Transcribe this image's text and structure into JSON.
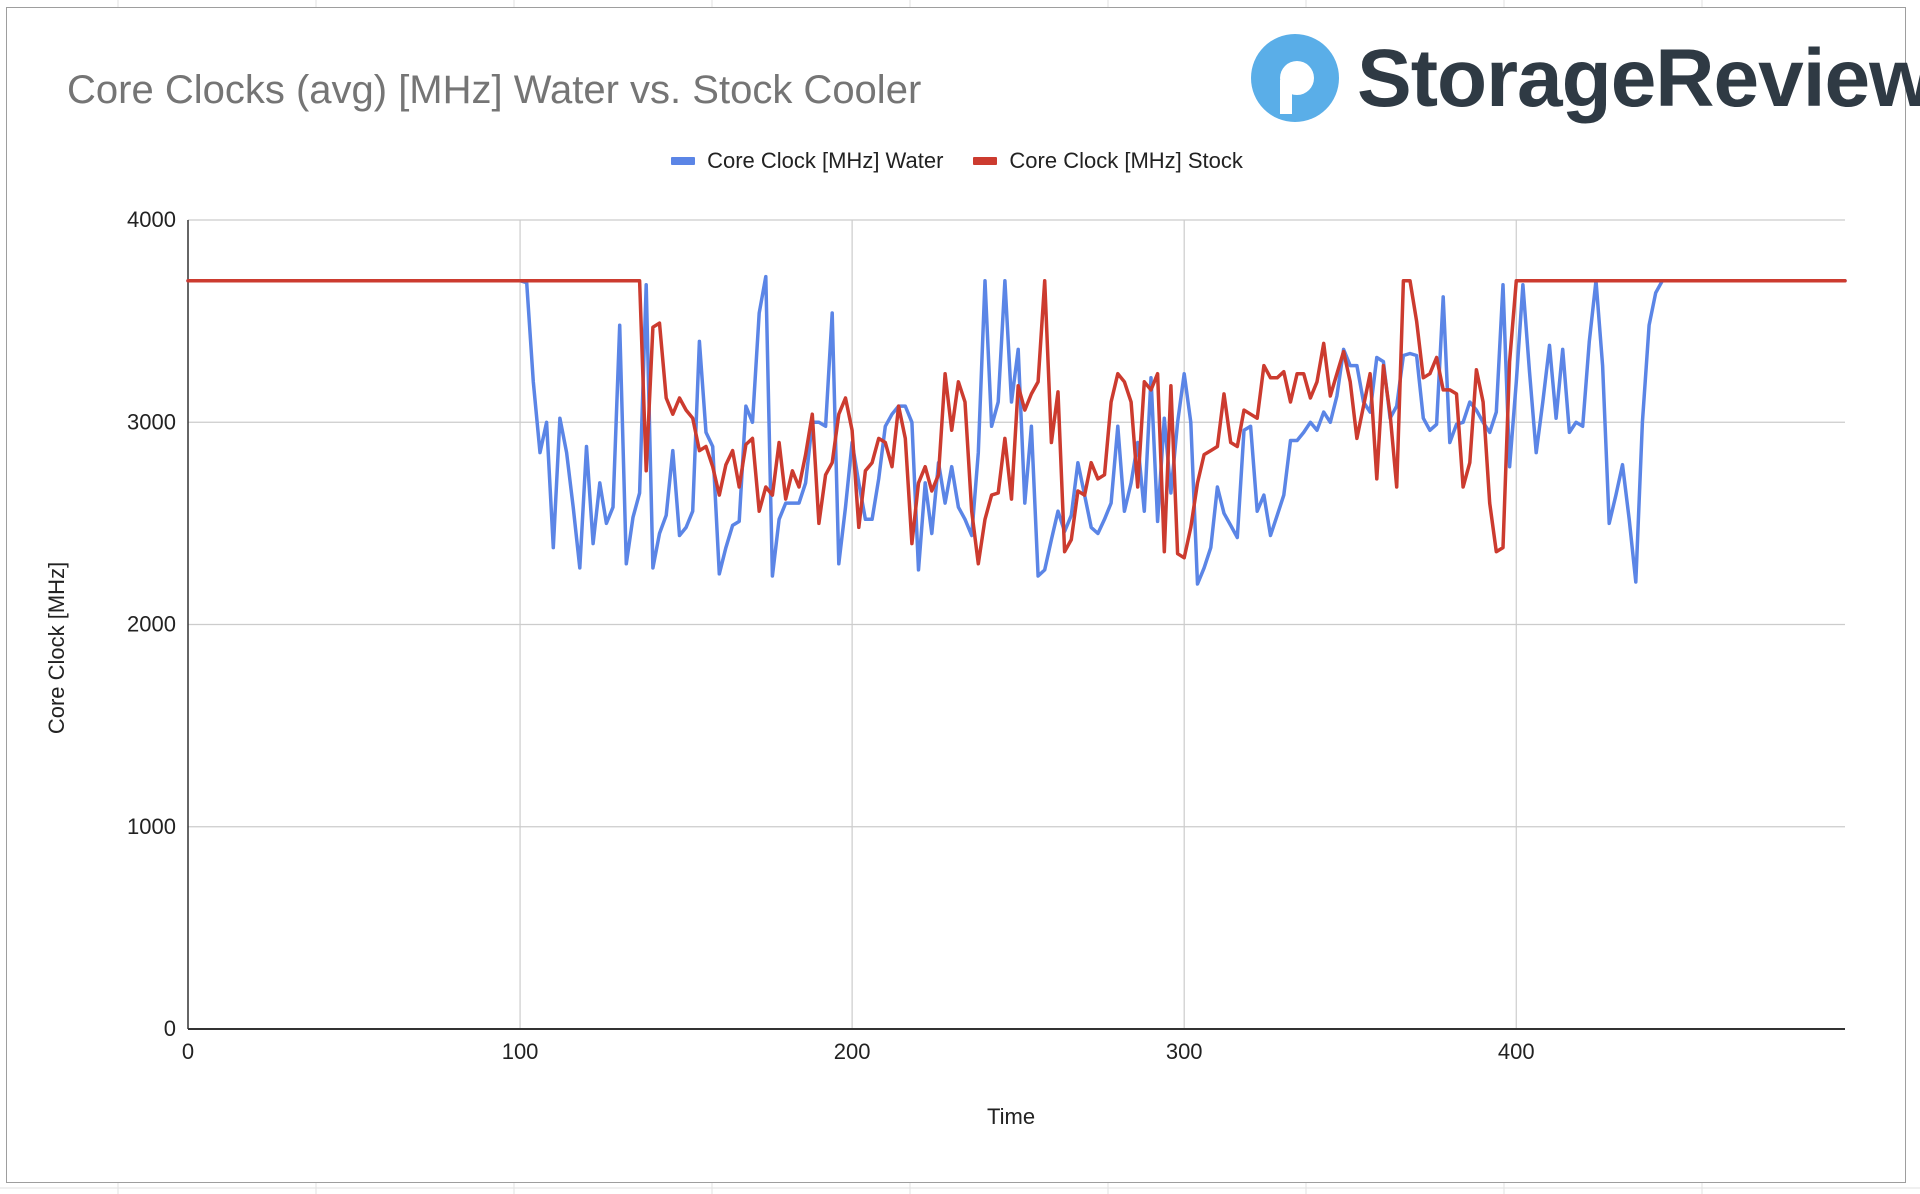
{
  "chart_title": "Core Clocks (avg) [MHz] Water vs. Stock Cooler",
  "logo_text": "StorageReview",
  "colors": {
    "water": "#5b85e6",
    "stock": "#cc3b2f",
    "grid": "#cccccc",
    "axis": "#333333",
    "logo_blue": "#5aaee8"
  },
  "icon": "storagereview-logo-icon",
  "chart_data": {
    "type": "line",
    "title": "Core Clocks (avg) [MHz] Water vs. Stock Cooler",
    "xlabel": "Time",
    "ylabel": "Core Clock [MHz]",
    "xlim": [
      0,
      499
    ],
    "ylim": [
      0,
      4000
    ],
    "xticks": [
      0,
      100,
      200,
      300,
      400
    ],
    "yticks": [
      0,
      1000,
      2000,
      3000,
      4000
    ],
    "grid": true,
    "legend_position": "top-center",
    "series": [
      {
        "name": "Core Clock [MHz] Water",
        "color": "#5b85e6",
        "points": [
          [
            0,
            3700
          ],
          [
            100,
            3700
          ],
          [
            102,
            3690
          ],
          [
            104,
            3200
          ],
          [
            106,
            2850
          ],
          [
            108,
            3000
          ],
          [
            110,
            2380
          ],
          [
            112,
            3020
          ],
          [
            114,
            2850
          ],
          [
            116,
            2580
          ],
          [
            118,
            2280
          ],
          [
            120,
            2880
          ],
          [
            122,
            2400
          ],
          [
            124,
            2700
          ],
          [
            126,
            2500
          ],
          [
            128,
            2580
          ],
          [
            130,
            3480
          ],
          [
            132,
            2300
          ],
          [
            134,
            2530
          ],
          [
            136,
            2650
          ],
          [
            138,
            3680
          ],
          [
            140,
            2280
          ],
          [
            142,
            2450
          ],
          [
            144,
            2540
          ],
          [
            146,
            2860
          ],
          [
            148,
            2440
          ],
          [
            150,
            2480
          ],
          [
            152,
            2560
          ],
          [
            154,
            3400
          ],
          [
            156,
            2950
          ],
          [
            158,
            2880
          ],
          [
            160,
            2250
          ],
          [
            162,
            2380
          ],
          [
            164,
            2490
          ],
          [
            166,
            2510
          ],
          [
            168,
            3080
          ],
          [
            170,
            3000
          ],
          [
            172,
            3540
          ],
          [
            174,
            3720
          ],
          [
            176,
            2240
          ],
          [
            178,
            2520
          ],
          [
            180,
            2600
          ],
          [
            182,
            2600
          ],
          [
            184,
            2600
          ],
          [
            186,
            2700
          ],
          [
            188,
            3000
          ],
          [
            190,
            3000
          ],
          [
            192,
            2980
          ],
          [
            194,
            3540
          ],
          [
            196,
            2300
          ],
          [
            198,
            2580
          ],
          [
            200,
            2900
          ],
          [
            202,
            2700
          ],
          [
            204,
            2520
          ],
          [
            206,
            2520
          ],
          [
            208,
            2720
          ],
          [
            210,
            2980
          ],
          [
            212,
            3040
          ],
          [
            214,
            3080
          ],
          [
            216,
            3080
          ],
          [
            218,
            3000
          ],
          [
            220,
            2270
          ],
          [
            222,
            2700
          ],
          [
            224,
            2450
          ],
          [
            226,
            2800
          ],
          [
            228,
            2600
          ],
          [
            230,
            2780
          ],
          [
            232,
            2580
          ],
          [
            234,
            2520
          ],
          [
            236,
            2440
          ],
          [
            238,
            2850
          ],
          [
            240,
            3700
          ],
          [
            242,
            2980
          ],
          [
            244,
            3100
          ],
          [
            246,
            3700
          ],
          [
            248,
            3100
          ],
          [
            250,
            3360
          ],
          [
            252,
            2600
          ],
          [
            254,
            2980
          ],
          [
            256,
            2240
          ],
          [
            258,
            2270
          ],
          [
            260,
            2420
          ],
          [
            262,
            2560
          ],
          [
            264,
            2460
          ],
          [
            266,
            2540
          ],
          [
            268,
            2800
          ],
          [
            270,
            2640
          ],
          [
            272,
            2480
          ],
          [
            274,
            2450
          ],
          [
            276,
            2520
          ],
          [
            278,
            2600
          ],
          [
            280,
            2980
          ],
          [
            282,
            2560
          ],
          [
            284,
            2700
          ],
          [
            286,
            2900
          ],
          [
            288,
            2560
          ],
          [
            290,
            3220
          ],
          [
            292,
            2510
          ],
          [
            294,
            3020
          ],
          [
            296,
            2650
          ],
          [
            298,
            3000
          ],
          [
            300,
            3240
          ],
          [
            302,
            3000
          ],
          [
            304,
            2200
          ],
          [
            306,
            2280
          ],
          [
            308,
            2380
          ],
          [
            310,
            2680
          ],
          [
            312,
            2550
          ],
          [
            314,
            2490
          ],
          [
            316,
            2430
          ],
          [
            318,
            2960
          ],
          [
            320,
            2980
          ],
          [
            322,
            2560
          ],
          [
            324,
            2640
          ],
          [
            326,
            2440
          ],
          [
            328,
            2540
          ],
          [
            330,
            2640
          ],
          [
            332,
            2910
          ],
          [
            334,
            2910
          ],
          [
            336,
            2950
          ],
          [
            338,
            3000
          ],
          [
            340,
            2960
          ],
          [
            342,
            3050
          ],
          [
            344,
            3000
          ],
          [
            346,
            3130
          ],
          [
            348,
            3360
          ],
          [
            350,
            3280
          ],
          [
            352,
            3280
          ],
          [
            354,
            3100
          ],
          [
            356,
            3050
          ],
          [
            358,
            3320
          ],
          [
            360,
            3300
          ],
          [
            362,
            3020
          ],
          [
            364,
            3080
          ],
          [
            366,
            3330
          ],
          [
            368,
            3340
          ],
          [
            370,
            3330
          ],
          [
            372,
            3020
          ],
          [
            374,
            2960
          ],
          [
            376,
            2990
          ],
          [
            378,
            3620
          ],
          [
            380,
            2900
          ],
          [
            382,
            2990
          ],
          [
            384,
            3000
          ],
          [
            386,
            3100
          ],
          [
            388,
            3060
          ],
          [
            390,
            3000
          ],
          [
            392,
            2950
          ],
          [
            394,
            3050
          ],
          [
            396,
            3680
          ],
          [
            398,
            2780
          ],
          [
            400,
            3200
          ],
          [
            402,
            3680
          ],
          [
            404,
            3250
          ],
          [
            406,
            2850
          ],
          [
            408,
            3100
          ],
          [
            410,
            3380
          ],
          [
            412,
            3020
          ],
          [
            414,
            3360
          ],
          [
            416,
            2950
          ],
          [
            418,
            3000
          ],
          [
            420,
            2980
          ],
          [
            422,
            3400
          ],
          [
            424,
            3700
          ],
          [
            426,
            3280
          ],
          [
            428,
            2500
          ],
          [
            430,
            2640
          ],
          [
            432,
            2790
          ],
          [
            434,
            2520
          ],
          [
            436,
            2210
          ],
          [
            438,
            3000
          ],
          [
            440,
            3480
          ],
          [
            442,
            3640
          ],
          [
            444,
            3700
          ],
          [
            499,
            3700
          ]
        ]
      },
      {
        "name": "Core Clock [MHz] Stock",
        "color": "#cc3b2f",
        "points": [
          [
            0,
            3700
          ],
          [
            134,
            3700
          ],
          [
            136,
            3700
          ],
          [
            138,
            2760
          ],
          [
            140,
            3470
          ],
          [
            142,
            3490
          ],
          [
            144,
            3120
          ],
          [
            146,
            3040
          ],
          [
            148,
            3120
          ],
          [
            150,
            3060
          ],
          [
            152,
            3020
          ],
          [
            154,
            2860
          ],
          [
            156,
            2880
          ],
          [
            158,
            2780
          ],
          [
            160,
            2640
          ],
          [
            162,
            2790
          ],
          [
            164,
            2860
          ],
          [
            166,
            2680
          ],
          [
            168,
            2890
          ],
          [
            170,
            2920
          ],
          [
            172,
            2560
          ],
          [
            174,
            2680
          ],
          [
            176,
            2640
          ],
          [
            178,
            2900
          ],
          [
            180,
            2620
          ],
          [
            182,
            2760
          ],
          [
            184,
            2680
          ],
          [
            186,
            2840
          ],
          [
            188,
            3040
          ],
          [
            190,
            2500
          ],
          [
            192,
            2740
          ],
          [
            194,
            2800
          ],
          [
            196,
            3040
          ],
          [
            198,
            3120
          ],
          [
            200,
            2960
          ],
          [
            202,
            2480
          ],
          [
            204,
            2760
          ],
          [
            206,
            2800
          ],
          [
            208,
            2920
          ],
          [
            210,
            2900
          ],
          [
            212,
            2780
          ],
          [
            214,
            3080
          ],
          [
            216,
            2920
          ],
          [
            218,
            2400
          ],
          [
            220,
            2700
          ],
          [
            222,
            2780
          ],
          [
            224,
            2660
          ],
          [
            226,
            2740
          ],
          [
            228,
            3240
          ],
          [
            230,
            2960
          ],
          [
            232,
            3200
          ],
          [
            234,
            3100
          ],
          [
            236,
            2560
          ],
          [
            238,
            2300
          ],
          [
            240,
            2520
          ],
          [
            242,
            2640
          ],
          [
            244,
            2650
          ],
          [
            246,
            2920
          ],
          [
            248,
            2620
          ],
          [
            250,
            3180
          ],
          [
            252,
            3060
          ],
          [
            254,
            3140
          ],
          [
            256,
            3200
          ],
          [
            258,
            3700
          ],
          [
            260,
            2900
          ],
          [
            262,
            3150
          ],
          [
            264,
            2360
          ],
          [
            266,
            2420
          ],
          [
            268,
            2660
          ],
          [
            270,
            2640
          ],
          [
            272,
            2800
          ],
          [
            274,
            2720
          ],
          [
            276,
            2740
          ],
          [
            278,
            3100
          ],
          [
            280,
            3240
          ],
          [
            282,
            3200
          ],
          [
            284,
            3100
          ],
          [
            286,
            2680
          ],
          [
            288,
            3200
          ],
          [
            290,
            3160
          ],
          [
            292,
            3240
          ],
          [
            294,
            2360
          ],
          [
            296,
            3180
          ],
          [
            298,
            2350
          ],
          [
            300,
            2330
          ],
          [
            302,
            2480
          ],
          [
            304,
            2700
          ],
          [
            306,
            2840
          ],
          [
            308,
            2860
          ],
          [
            310,
            2880
          ],
          [
            312,
            3140
          ],
          [
            314,
            2900
          ],
          [
            316,
            2880
          ],
          [
            318,
            3060
          ],
          [
            320,
            3040
          ],
          [
            322,
            3020
          ],
          [
            324,
            3280
          ],
          [
            326,
            3220
          ],
          [
            328,
            3220
          ],
          [
            330,
            3250
          ],
          [
            332,
            3100
          ],
          [
            334,
            3240
          ],
          [
            336,
            3240
          ],
          [
            338,
            3120
          ],
          [
            340,
            3200
          ],
          [
            342,
            3390
          ],
          [
            344,
            3130
          ],
          [
            346,
            3240
          ],
          [
            348,
            3350
          ],
          [
            350,
            3200
          ],
          [
            352,
            2920
          ],
          [
            354,
            3080
          ],
          [
            356,
            3240
          ],
          [
            358,
            2720
          ],
          [
            360,
            3280
          ],
          [
            362,
            3040
          ],
          [
            364,
            2680
          ],
          [
            366,
            3700
          ],
          [
            368,
            3700
          ],
          [
            370,
            3500
          ],
          [
            372,
            3220
          ],
          [
            374,
            3240
          ],
          [
            376,
            3320
          ],
          [
            378,
            3160
          ],
          [
            380,
            3160
          ],
          [
            382,
            3140
          ],
          [
            384,
            2680
          ],
          [
            386,
            2800
          ],
          [
            388,
            3260
          ],
          [
            390,
            3100
          ],
          [
            392,
            2600
          ],
          [
            394,
            2360
          ],
          [
            396,
            2380
          ],
          [
            398,
            3300
          ],
          [
            400,
            3700
          ],
          [
            499,
            3700
          ]
        ]
      }
    ]
  }
}
